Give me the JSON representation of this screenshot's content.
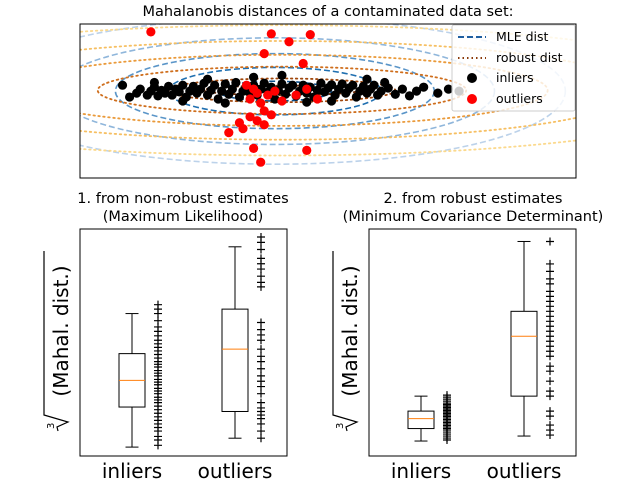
{
  "figure": {
    "title": "Mahalanobis distances of a contaminated data set:"
  },
  "chart_data": [
    {
      "type": "scatter",
      "title": "Mahalanobis distances of a contaminated data set:",
      "xlim": [
        -5.5,
        8.5
      ],
      "ylim": [
        -2.3,
        1.6
      ],
      "grid": false,
      "xticks": [],
      "yticks": [],
      "legend": {
        "placement": "top-right",
        "entries": [
          "MLE dist",
          "robust dist",
          "inliers",
          "outliers"
        ]
      },
      "contours": [
        {
          "name": "MLE dist",
          "style": "dashed",
          "colormap": "PuBu_r",
          "center": [
            0,
            0
          ]
        },
        {
          "name": "robust dist",
          "style": "dotted",
          "colormap": "YlOrBr_r",
          "center": [
            0,
            0
          ]
        }
      ],
      "series": [
        {
          "name": "inliers",
          "color": "#000000",
          "points": [
            [
              -4.3,
              0.05
            ],
            [
              -4.1,
              -0.25
            ],
            [
              -3.9,
              -0.15
            ],
            [
              -3.8,
              -0.05
            ],
            [
              -3.6,
              -0.2
            ],
            [
              -3.5,
              -0.1
            ],
            [
              -3.4,
              0.0
            ],
            [
              -3.3,
              -0.22
            ],
            [
              -3.2,
              -0.08
            ],
            [
              -3.1,
              -0.15
            ],
            [
              -3.0,
              0.02
            ],
            [
              -2.9,
              -0.2
            ],
            [
              -2.8,
              -0.05
            ],
            [
              -2.7,
              -0.12
            ],
            [
              -2.6,
              0.05
            ],
            [
              -2.5,
              -0.25
            ],
            [
              -2.4,
              -0.1
            ],
            [
              -2.3,
              0.02
            ],
            [
              -2.2,
              -0.15
            ],
            [
              -2.1,
              -0.05
            ],
            [
              -2.0,
              0.1
            ],
            [
              -1.9,
              -0.2
            ],
            [
              -1.8,
              -0.08
            ],
            [
              -1.7,
              0.05
            ],
            [
              -1.6,
              -0.3
            ],
            [
              -1.5,
              -0.1
            ],
            [
              -1.4,
              0.08
            ],
            [
              -1.3,
              -0.18
            ],
            [
              -1.2,
              -0.05
            ],
            [
              -1.1,
              0.12
            ],
            [
              -1.0,
              -0.25
            ],
            [
              -0.9,
              -0.1
            ],
            [
              -0.8,
              0.02
            ],
            [
              -0.7,
              -0.15
            ],
            [
              -0.6,
              0.05
            ],
            [
              -0.5,
              -0.2
            ],
            [
              -0.4,
              -0.05
            ],
            [
              -0.3,
              0.1
            ],
            [
              -0.2,
              -0.12
            ],
            [
              -0.1,
              0.0
            ],
            [
              0.0,
              -0.3
            ],
            [
              0.1,
              -0.08
            ],
            [
              0.2,
              0.08
            ],
            [
              0.3,
              -0.18
            ],
            [
              0.4,
              -0.02
            ],
            [
              0.5,
              0.05
            ],
            [
              0.6,
              -0.22
            ],
            [
              0.7,
              -0.1
            ],
            [
              0.8,
              0.05
            ],
            [
              0.9,
              -0.15
            ],
            [
              1.0,
              0.0
            ],
            [
              1.1,
              -0.25
            ],
            [
              1.2,
              -0.08
            ],
            [
              1.3,
              0.1
            ],
            [
              1.4,
              -0.12
            ],
            [
              1.5,
              -0.02
            ],
            [
              1.6,
              0.06
            ],
            [
              1.7,
              -0.2
            ],
            [
              1.8,
              -0.05
            ],
            [
              1.9,
              0.08
            ],
            [
              2.0,
              -0.15
            ],
            [
              2.1,
              -0.02
            ],
            [
              2.2,
              0.05
            ],
            [
              2.3,
              -0.25
            ],
            [
              2.4,
              -0.1
            ],
            [
              2.5,
              0.02
            ],
            [
              2.6,
              -0.15
            ],
            [
              2.7,
              -0.05
            ],
            [
              2.8,
              0.05
            ],
            [
              2.9,
              -0.2
            ],
            [
              3.0,
              -0.1
            ],
            [
              3.2,
              -0.02
            ],
            [
              3.4,
              -0.18
            ],
            [
              3.6,
              -0.05
            ],
            [
              3.8,
              -0.22
            ],
            [
              4.0,
              -0.1
            ],
            [
              4.2,
              0.0
            ],
            [
              4.6,
              -0.15
            ],
            [
              4.9,
              -0.05
            ],
            [
              5.2,
              -0.1
            ],
            [
              -2.6,
              -0.35
            ],
            [
              -1.4,
              -0.4
            ],
            [
              0.2,
              0.3
            ],
            [
              1.6,
              -0.35
            ],
            [
              2.6,
              0.2
            ],
            [
              -0.6,
              0.25
            ],
            [
              3.1,
              0.12
            ],
            [
              -3.4,
              0.12
            ],
            [
              0.9,
              -0.38
            ],
            [
              -1.9,
              0.2
            ]
          ]
        },
        {
          "name": "outliers",
          "color": "#ff0000",
          "points": [
            [
              -3.5,
              1.4
            ],
            [
              -0.1,
              1.35
            ],
            [
              0.4,
              1.15
            ],
            [
              1.0,
              1.33
            ],
            [
              0.8,
              0.6
            ],
            [
              -0.3,
              0.85
            ],
            [
              -0.8,
              0.05
            ],
            [
              -0.6,
              -0.05
            ],
            [
              -0.5,
              -0.15
            ],
            [
              -0.7,
              -0.3
            ],
            [
              -0.4,
              -0.4
            ],
            [
              -0.2,
              -0.2
            ],
            [
              0.0,
              -0.1
            ],
            [
              0.2,
              -0.35
            ],
            [
              -0.3,
              -0.6
            ],
            [
              -0.7,
              -0.75
            ],
            [
              -0.5,
              -0.85
            ],
            [
              -0.3,
              -0.95
            ],
            [
              -1.0,
              -0.9
            ],
            [
              -1.3,
              -1.15
            ],
            [
              -0.9,
              -1.05
            ],
            [
              -0.6,
              -1.55
            ],
            [
              -0.4,
              -1.9
            ],
            [
              0.9,
              -1.6
            ],
            [
              -0.1,
              -0.7
            ],
            [
              0.6,
              -0.2
            ],
            [
              0.9,
              -0.05
            ],
            [
              1.2,
              -0.3
            ]
          ]
        }
      ]
    },
    {
      "type": "box",
      "title": "1. from non-robust estimates\n(Maximum Likelihood)",
      "title_lines": [
        "1. from non-robust estimates",
        "(Maximum Likelihood)"
      ],
      "ylabel": "$\\sqrt[3]{\\rm{(Mahal. dist.)}}$",
      "ylabel_parts": {
        "radical_index": "3",
        "text": "(Mahal. dist.)"
      },
      "categories": [
        "inliers",
        "outliers"
      ],
      "ylim": [
        0.5,
        3.05
      ],
      "boxes": [
        {
          "name": "inliers",
          "whislo": 0.6,
          "q1": 1.05,
          "med": 1.35,
          "q3": 1.65,
          "whishi": 2.1
        },
        {
          "name": "outliers",
          "whislo": 0.7,
          "q1": 1.0,
          "med": 1.7,
          "q3": 2.15,
          "whishi": 2.85
        }
      ],
      "strip_points": [
        [
          0.62,
          0.68,
          0.72,
          0.78,
          0.82,
          0.86,
          0.9,
          0.94,
          0.98,
          1.02,
          1.06,
          1.1,
          1.13,
          1.16,
          1.2,
          1.23,
          1.26,
          1.3,
          1.33,
          1.36,
          1.4,
          1.43,
          1.46,
          1.5,
          1.53,
          1.56,
          1.6,
          1.64,
          1.68,
          1.72,
          1.76,
          1.8,
          1.85,
          1.9,
          1.95,
          2.02,
          2.1,
          2.15,
          2.2
        ],
        [
          0.7,
          0.78,
          0.86,
          0.92,
          0.96,
          1.0,
          1.04,
          1.1,
          1.2,
          1.28,
          1.34,
          1.4,
          1.48,
          1.56,
          1.62,
          1.7,
          1.8,
          1.86,
          1.92,
          2.0,
          2.4,
          2.45,
          2.52,
          2.6,
          2.66,
          2.72,
          2.82,
          2.9,
          2.96
        ]
      ]
    },
    {
      "type": "box",
      "title": "2. from robust estimates\n(Minimum Covariance Determinant)",
      "title_lines": [
        "2. from robust estimates",
        "(Minimum Covariance Determinant)"
      ],
      "ylabel": "$\\sqrt[3]{\\rm{(Mahal. dist.)}}$",
      "ylabel_parts": {
        "radical_index": "3",
        "text": "(Mahal. dist.)"
      },
      "categories": [
        "inliers",
        "outliers"
      ],
      "ylim": [
        0.5,
        5.05
      ],
      "boxes": [
        {
          "name": "inliers",
          "whislo": 0.8,
          "q1": 1.05,
          "med": 1.25,
          "q3": 1.4,
          "whishi": 1.7
        },
        {
          "name": "outliers",
          "whislo": 0.9,
          "q1": 1.7,
          "med": 2.9,
          "q3": 3.4,
          "whishi": 4.8
        }
      ],
      "strip_points": [
        [
          0.82,
          0.86,
          0.9,
          0.94,
          0.98,
          1.02,
          1.05,
          1.08,
          1.11,
          1.14,
          1.17,
          1.2,
          1.23,
          1.26,
          1.29,
          1.32,
          1.35,
          1.38,
          1.41,
          1.44,
          1.47,
          1.5,
          1.53,
          1.56,
          1.6,
          1.64,
          1.68,
          1.72
        ],
        [
          0.92,
          1.02,
          1.12,
          1.3,
          1.4,
          1.7,
          1.8,
          2.0,
          2.2,
          2.3,
          2.5,
          2.6,
          2.7,
          2.8,
          2.9,
          3.0,
          3.1,
          3.2,
          3.3,
          3.4,
          3.5,
          3.6,
          3.7,
          3.8,
          3.95,
          4.05,
          4.2,
          4.35,
          4.8
        ]
      ]
    }
  ]
}
